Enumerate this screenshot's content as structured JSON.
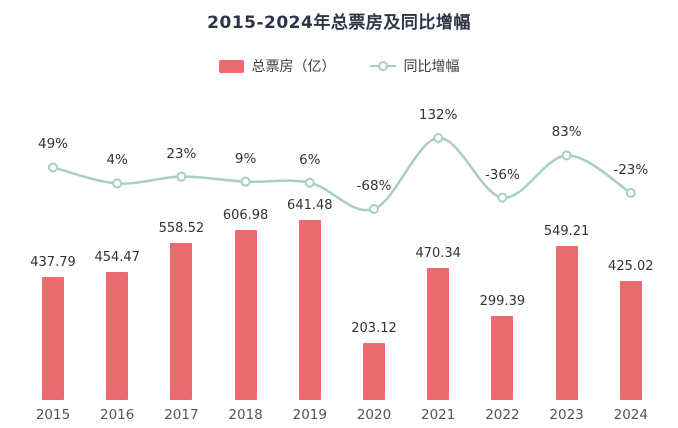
{
  "title": "2015-2024年总票房及同比增幅",
  "legend": [
    {
      "label": "总票房（亿）",
      "type": "bar",
      "color": "#ea6a6f"
    },
    {
      "label": "同比增幅",
      "type": "line",
      "color": "#a8cfc6"
    }
  ],
  "chart_data": {
    "type": "bar",
    "title": "2015-2024年总票房及同比增幅",
    "categories": [
      "2015",
      "2016",
      "2017",
      "2018",
      "2019",
      "2020",
      "2021",
      "2022",
      "2023",
      "2024"
    ],
    "series": [
      {
        "name": "总票房（亿）",
        "type": "bar",
        "color": "#ea6a6f",
        "values": [
          437.79,
          454.47,
          558.52,
          606.98,
          641.48,
          203.12,
          470.34,
          299.39,
          549.21,
          425.02
        ]
      },
      {
        "name": "同比增幅",
        "type": "line",
        "color": "#a8cfc6",
        "values_percent": [
          49,
          4,
          23,
          9,
          6,
          -68,
          132,
          -36,
          83,
          -23
        ],
        "labels": [
          "49%",
          "4%",
          "23%",
          "9%",
          "6%",
          "-68%",
          "132%",
          "-36%",
          "83%",
          "-23%"
        ]
      }
    ],
    "xlabel": "",
    "ylabel": "",
    "grid": false,
    "axes_visible": false,
    "legend_position": "top",
    "data_labels": true
  }
}
